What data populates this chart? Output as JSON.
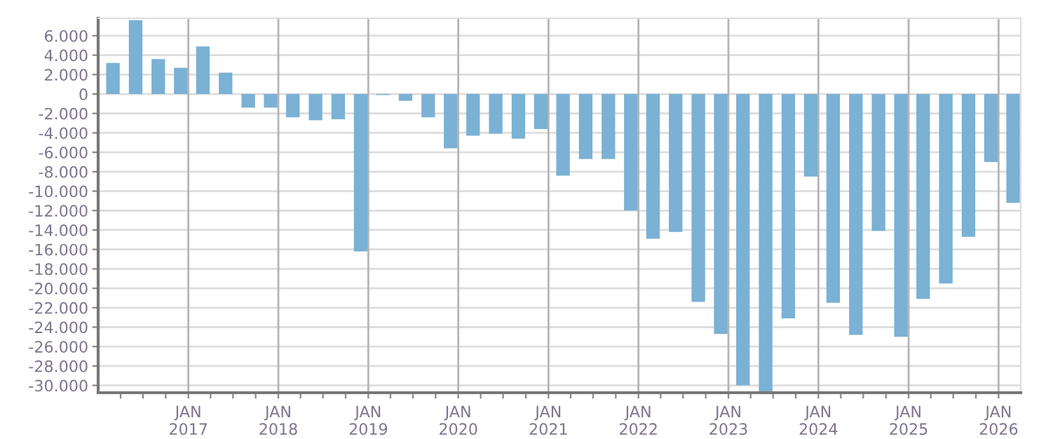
{
  "chart_data": {
    "type": "bar",
    "color": "#7ab1d4",
    "x": [
      "2016-03",
      "2016-06",
      "2016-09",
      "2016-12",
      "2017-03",
      "2017-06",
      "2017-09",
      "2017-12",
      "2018-03",
      "2018-06",
      "2018-09",
      "2018-12",
      "2019-03",
      "2019-06",
      "2019-09",
      "2019-12",
      "2020-03",
      "2020-06",
      "2020-09",
      "2020-12",
      "2021-03",
      "2021-06",
      "2021-09",
      "2021-12",
      "2022-03",
      "2022-06",
      "2022-09",
      "2022-12",
      "2023-03",
      "2023-06",
      "2023-09",
      "2023-12",
      "2024-03",
      "2024-06",
      "2024-09",
      "2024-12",
      "2025-03",
      "2025-06",
      "2025-09",
      "2025-12",
      "2026-03"
    ],
    "values": [
      3200,
      7600,
      3600,
      2700,
      4900,
      2200,
      -1400,
      -1400,
      -2400,
      -2700,
      -2600,
      -16200,
      -100,
      -700,
      -2400,
      -5600,
      -4300,
      -4100,
      -4600,
      -3600,
      -8400,
      -6700,
      -6700,
      -12000,
      -14900,
      -14200,
      -21400,
      -24700,
      -30000,
      -30600,
      -23100,
      -8500,
      -21500,
      -24800,
      -14100,
      -25000,
      -21100,
      -19500,
      -14700,
      -7000,
      -11200
    ],
    "xlim": [
      "2016-01",
      "2026-04"
    ],
    "xticks": [
      {
        "value": "2016-04",
        "label": null
      },
      {
        "value": "2016-07",
        "label": null
      },
      {
        "value": "2016-10",
        "label": null
      },
      {
        "value": "2017-01",
        "label": "JAN\n2017"
      },
      {
        "value": "2017-04",
        "label": null
      },
      {
        "value": "2017-07",
        "label": null
      },
      {
        "value": "2017-10",
        "label": null
      },
      {
        "value": "2018-01",
        "label": "JAN\n2018"
      },
      {
        "value": "2018-04",
        "label": null
      },
      {
        "value": "2018-07",
        "label": null
      },
      {
        "value": "2018-10",
        "label": null
      },
      {
        "value": "2019-01",
        "label": "JAN\n2019"
      },
      {
        "value": "2019-04",
        "label": null
      },
      {
        "value": "2019-07",
        "label": null
      },
      {
        "value": "2019-10",
        "label": null
      },
      {
        "value": "2020-01",
        "label": "JAN\n2020"
      },
      {
        "value": "2020-04",
        "label": null
      },
      {
        "value": "2020-07",
        "label": null
      },
      {
        "value": "2020-10",
        "label": null
      },
      {
        "value": "2021-01",
        "label": "JAN\n2021"
      },
      {
        "value": "2021-04",
        "label": null
      },
      {
        "value": "2021-07",
        "label": null
      },
      {
        "value": "2021-10",
        "label": null
      },
      {
        "value": "2022-01",
        "label": "JAN\n2022"
      },
      {
        "value": "2022-04",
        "label": null
      },
      {
        "value": "2022-07",
        "label": null
      },
      {
        "value": "2022-10",
        "label": null
      },
      {
        "value": "2023-01",
        "label": "JAN\n2023"
      },
      {
        "value": "2023-04",
        "label": null
      },
      {
        "value": "2023-07",
        "label": null
      },
      {
        "value": "2023-10",
        "label": null
      },
      {
        "value": "2024-01",
        "label": "JAN\n2024"
      },
      {
        "value": "2024-04",
        "label": null
      },
      {
        "value": "2024-07",
        "label": null
      },
      {
        "value": "2024-10",
        "label": null
      },
      {
        "value": "2025-01",
        "label": "JAN\n2025"
      },
      {
        "value": "2025-04",
        "label": null
      },
      {
        "value": "2025-07",
        "label": null
      },
      {
        "value": "2025-10",
        "label": null
      },
      {
        "value": "2026-01",
        "label": "JAN\n2026"
      }
    ],
    "ylim": [
      -30750,
      7800
    ],
    "yticks": [
      {
        "value": 6000,
        "label": "6.000"
      },
      {
        "value": 4000,
        "label": "4.000"
      },
      {
        "value": 2000,
        "label": "2.000"
      },
      0,
      {
        "value": -2000,
        "label": "-2.000"
      },
      {
        "value": -4000,
        "label": "-4.000"
      },
      {
        "value": -6000,
        "label": "-6.000"
      },
      {
        "value": -8000,
        "label": "-8.000"
      },
      {
        "value": -10000,
        "label": "-10.000"
      },
      {
        "value": -12000,
        "label": "-12.000"
      },
      {
        "value": -14000,
        "label": "-14.000"
      },
      {
        "value": -16000,
        "label": "-16.000"
      },
      {
        "value": -18000,
        "label": "-18.000"
      },
      {
        "value": -20000,
        "label": "-20.000"
      },
      {
        "value": -22000,
        "label": "-22.000"
      },
      {
        "value": -24000,
        "label": "-24.000"
      },
      {
        "value": -26000,
        "label": "-26.000"
      },
      {
        "value": -28000,
        "label": "-28.000"
      },
      {
        "value": -30000,
        "label": "-30.000"
      }
    ],
    "grid": true
  }
}
